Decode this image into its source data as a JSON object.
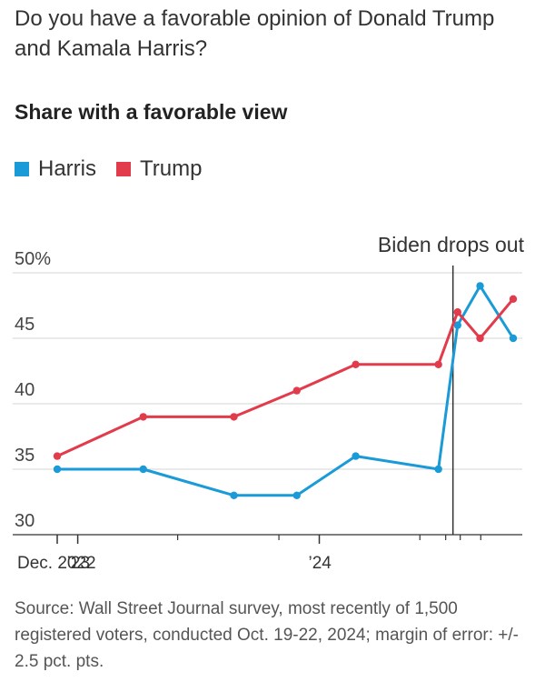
{
  "headline": "Do you have a favorable opinion of Donald Trump and Kamala Harris?",
  "subtitle": "Share with a favorable view",
  "legend": [
    {
      "name": "Harris",
      "color": "#1a9ad6"
    },
    {
      "name": "Trump",
      "color": "#e23b4b"
    }
  ],
  "source": "Source: Wall Street Journal survey, most recently of 1,500 registered voters, conducted Oct. 19-22, 2024; margin of error: +/- 2.5 pct. pts.",
  "chart_data": {
    "type": "line",
    "title": "Share with a favorable view",
    "x_type": "date",
    "x_range": [
      "2022-12-01",
      "2024-10-31"
    ],
    "ylim": [
      30,
      50
    ],
    "y_ticks": [
      {
        "value": 50,
        "label": "50%"
      },
      {
        "value": 45,
        "label": "45"
      },
      {
        "value": 40,
        "label": "40"
      },
      {
        "value": 35,
        "label": "35"
      },
      {
        "value": 30,
        "label": "30"
      }
    ],
    "x_tick_labels": [
      {
        "date": "2022-12-01",
        "label": "Dec. 2022"
      },
      {
        "date": "2023-01-01",
        "label": "’23"
      },
      {
        "date": "2024-01-01",
        "label": "’24"
      }
    ],
    "x_minor_ticks": [
      "2023-06-01",
      "2023-11-01",
      "2024-06-01",
      "2024-07-10",
      "2024-08-01",
      "2024-09-01"
    ],
    "grid": true,
    "legend_position": "top-left",
    "series": [
      {
        "name": "Harris",
        "color": "#1a9ad6",
        "points": [
          {
            "x": "2022-12-01",
            "y": 35
          },
          {
            "x": "2023-04-10",
            "y": 35
          },
          {
            "x": "2023-08-25",
            "y": 33
          },
          {
            "x": "2023-11-28",
            "y": 33
          },
          {
            "x": "2024-02-25",
            "y": 36
          },
          {
            "x": "2024-06-29",
            "y": 35
          },
          {
            "x": "2024-07-28",
            "y": 46
          },
          {
            "x": "2024-08-31",
            "y": 49
          },
          {
            "x": "2024-10-20",
            "y": 45
          }
        ]
      },
      {
        "name": "Trump",
        "color": "#e23b4b",
        "points": [
          {
            "x": "2022-12-01",
            "y": 36
          },
          {
            "x": "2023-04-10",
            "y": 39
          },
          {
            "x": "2023-08-25",
            "y": 39
          },
          {
            "x": "2023-11-28",
            "y": 41
          },
          {
            "x": "2024-02-25",
            "y": 43
          },
          {
            "x": "2024-06-29",
            "y": 43
          },
          {
            "x": "2024-07-28",
            "y": 47
          },
          {
            "x": "2024-08-31",
            "y": 45
          },
          {
            "x": "2024-10-20",
            "y": 48
          }
        ]
      }
    ],
    "annotations": [
      {
        "x": "2024-07-21",
        "label": "Biden drops out"
      }
    ]
  }
}
